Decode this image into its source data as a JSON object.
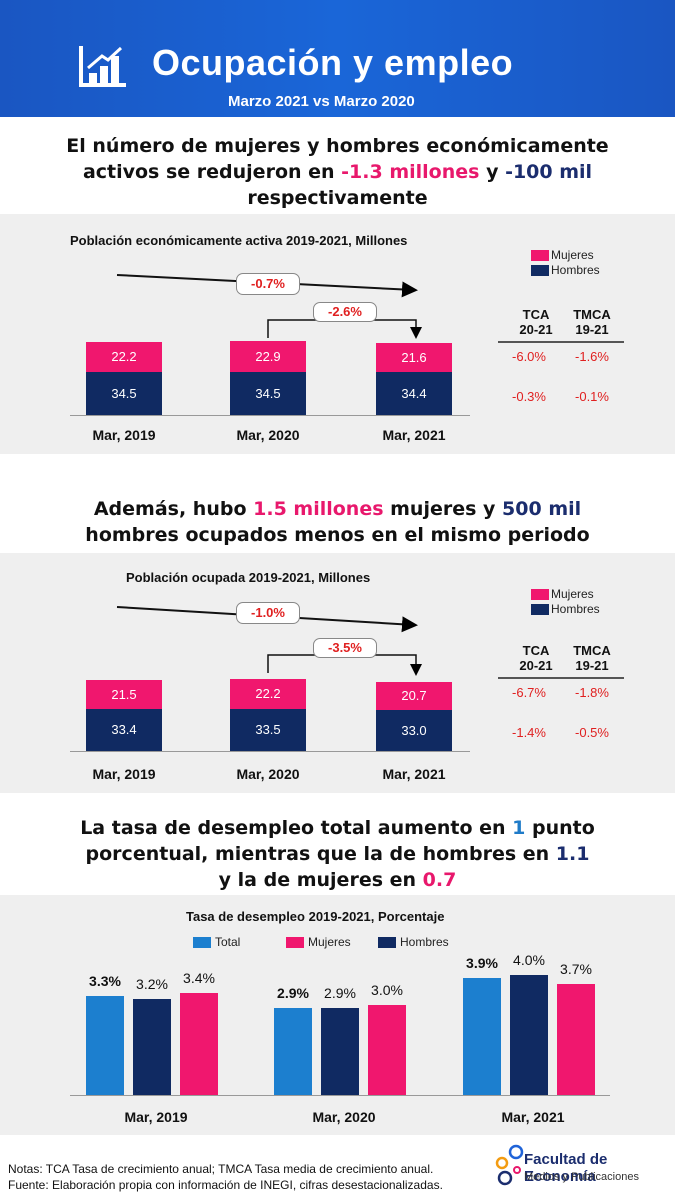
{
  "header": {
    "title": "Ocupación y empleo",
    "subtitle": "Marzo 2021 vs Marzo 2020"
  },
  "headline1": {
    "line1": "El número de mujeres y hombres económicamente",
    "line2_pre": "activos se redujeron en ",
    "line2_pink": "-1.3 millones",
    "line2_mid": " y ",
    "line2_navy": "-100 mil",
    "line3": "respectivamente"
  },
  "headline2": {
    "line1_pre": "Además, hubo ",
    "line1_pink": "1.5 millones",
    "line1_mid": " mujeres y ",
    "line1_navy": "500 mil",
    "line2": "hombres ocupados menos en el mismo periodo"
  },
  "headline3": {
    "line1_pre": "La tasa de desempleo total aumento en ",
    "line1_blue": "1",
    "line1_post": " punto",
    "line2_pre": "porcentual, mientras que la de hombres en ",
    "line2_navy": "1.1",
    "line3_pre": "y la de mujeres en ",
    "line3_pink": "0.7"
  },
  "colors": {
    "mujeres": "#f0176e",
    "hombres": "#102a62",
    "total": "#1c7fcf",
    "change": "#e02020"
  },
  "chart_data": [
    {
      "type": "bar",
      "stacked": true,
      "title": "Población económicamente activa 2019-2021, Millones",
      "categories": [
        "Mar, 2019",
        "Mar, 2020",
        "Mar, 2021"
      ],
      "series": [
        {
          "name": "Hombres",
          "values": [
            34.5,
            34.5,
            34.4
          ],
          "labels": [
            "34.5",
            "34.5",
            "34.4"
          ]
        },
        {
          "name": "Mujeres",
          "values": [
            22.2,
            22.9,
            21.6
          ],
          "labels": [
            "22.2",
            "22.9",
            "21.6"
          ]
        }
      ],
      "legend": [
        "Mujeres",
        "Hombres"
      ],
      "annotations": {
        "change_2019_2021": "-0.7%",
        "change_2020_2021": "-2.6%"
      },
      "table": {
        "headers": [
          "TCA 20-21",
          "TMCA 19-21"
        ],
        "header_lines": [
          [
            "TCA",
            "20-21"
          ],
          [
            "TMCA",
            "19-21"
          ]
        ],
        "rows": [
          [
            "-6.0%",
            "-1.6%"
          ],
          [
            "-0.3%",
            "-0.1%"
          ]
        ]
      }
    },
    {
      "type": "bar",
      "stacked": true,
      "title": "Población ocupada 2019-2021, Millones",
      "categories": [
        "Mar, 2019",
        "Mar, 2020",
        "Mar, 2021"
      ],
      "series": [
        {
          "name": "Hombres",
          "values": [
            33.4,
            33.5,
            33.0
          ],
          "labels": [
            "33.4",
            "33.5",
            "33.0"
          ]
        },
        {
          "name": "Mujeres",
          "values": [
            21.5,
            22.2,
            20.7
          ],
          "labels": [
            "21.5",
            "22.2",
            "20.7"
          ]
        }
      ],
      "legend": [
        "Mujeres",
        "Hombres"
      ],
      "annotations": {
        "change_2019_2021": "-1.0%",
        "change_2020_2021": "-3.5%"
      },
      "table": {
        "headers": [
          "TCA 20-21",
          "TMCA 19-21"
        ],
        "header_lines": [
          [
            "TCA",
            "20-21"
          ],
          [
            "TMCA",
            "19-21"
          ]
        ],
        "rows": [
          [
            "-6.7%",
            "-1.8%"
          ],
          [
            "-1.4%",
            "-0.5%"
          ]
        ]
      }
    },
    {
      "type": "bar",
      "stacked": false,
      "title": "Tasa de desempleo 2019-2021, Porcentaje",
      "categories": [
        "Mar, 2019",
        "Mar, 2020",
        "Mar, 2021"
      ],
      "series": [
        {
          "name": "Total",
          "values": [
            3.3,
            2.9,
            3.9
          ],
          "labels": [
            "3.3%",
            "2.9%",
            "3.9%"
          ]
        },
        {
          "name": "Hombres",
          "values": [
            3.2,
            2.9,
            4.0
          ],
          "labels": [
            "3.2%",
            "2.9%",
            "4.0%"
          ]
        },
        {
          "name": "Mujeres",
          "values": [
            3.4,
            3.0,
            3.7
          ],
          "labels": [
            "3.4%",
            "3.0%",
            "3.7%"
          ]
        }
      ],
      "legend": [
        "Total",
        "Mujeres",
        "Hombres"
      ],
      "ylim": [
        0,
        4.5
      ]
    }
  ],
  "footer": {
    "notes_line1": "Notas: TCA Tasa de crecimiento anual; TMCA Tasa media de crecimiento anual.",
    "notes_line2": "Fuente: Elaboración propia con información de INEGI, cifras desestacionalizadas.",
    "logo_title": "Facultad de Economía",
    "logo_subtitle": "Medios y Publicaciones"
  }
}
